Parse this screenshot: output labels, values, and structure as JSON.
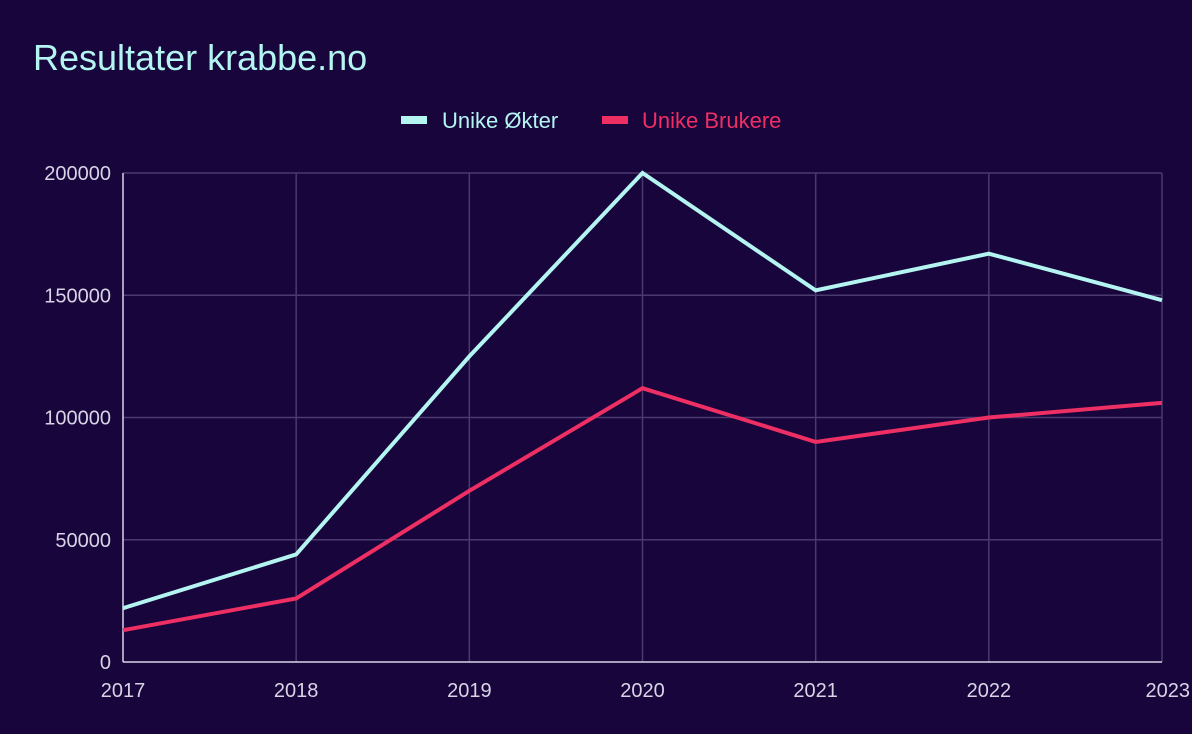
{
  "colors": {
    "background": "#17053c",
    "grid": "#4a3a6e",
    "axis": "#d8d4e6",
    "tick_text": "#d8d4e6",
    "title": "#b4f5f2"
  },
  "chart_data": {
    "type": "line",
    "title": "Resultater krabbe.no",
    "xlabel": "",
    "ylabel": "",
    "x": [
      "2017",
      "2018",
      "2019",
      "2020",
      "2021",
      "2022",
      "2023"
    ],
    "ylim": [
      0,
      200000
    ],
    "yticks": [
      0,
      50000,
      100000,
      150000,
      200000
    ],
    "grid": true,
    "legend_position": "top-center",
    "series": [
      {
        "name": "Unike Økter",
        "color": "#b4f5f2",
        "values": [
          22000,
          44000,
          125000,
          200000,
          152000,
          167000,
          148000
        ]
      },
      {
        "name": "Unike Brukere",
        "color": "#ee2f64",
        "values": [
          13000,
          26000,
          70000,
          112000,
          90000,
          100000,
          106000
        ]
      }
    ]
  }
}
